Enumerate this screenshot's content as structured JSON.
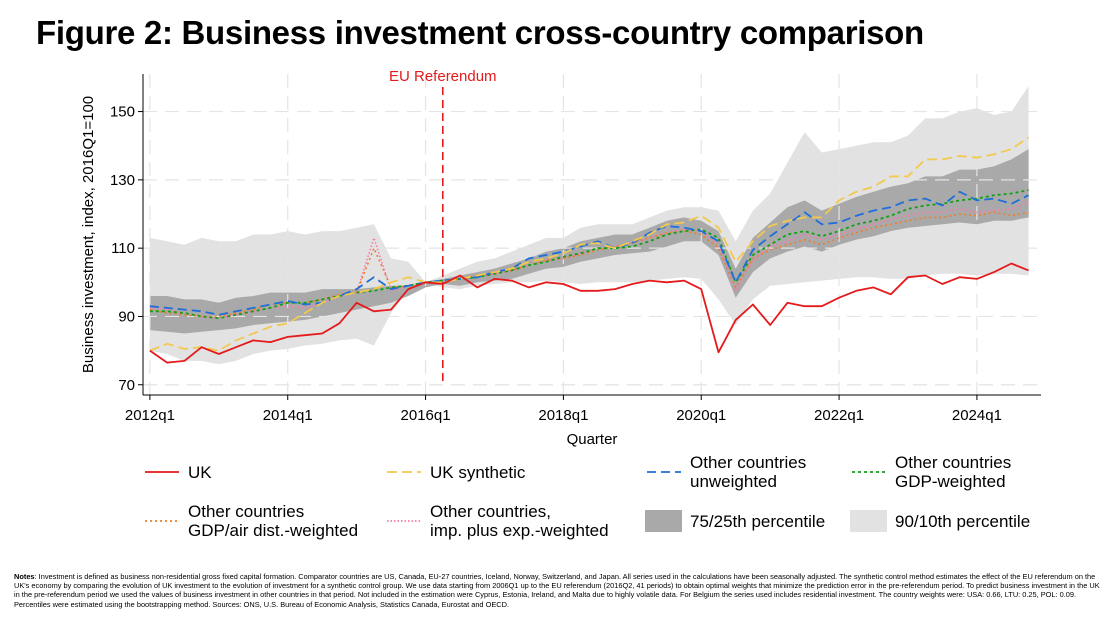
{
  "title": "Figure 2: Business investment cross-country comparison",
  "chart_data": {
    "type": "line",
    "xlabel": "Quarter",
    "ylabel": "Business investment, index, 2016Q1=100",
    "ylim": [
      67,
      161
    ],
    "yticks": [
      70,
      90,
      110,
      130,
      150
    ],
    "xticks": [
      {
        "x": 2012.0,
        "label": "2012q1"
      },
      {
        "x": 2014.0,
        "label": "2014q1"
      },
      {
        "x": 2016.0,
        "label": "2016q1"
      },
      {
        "x": 2018.0,
        "label": "2018q1"
      },
      {
        "x": 2020.0,
        "label": "2020q1"
      },
      {
        "x": 2022.0,
        "label": "2022q1"
      },
      {
        "x": 2024.0,
        "label": "2024q1"
      }
    ],
    "grid": true,
    "annotation": {
      "x": 2016.25,
      "label": "EU Referendum",
      "color": "#e41a1c"
    },
    "x": [
      2012.0,
      2012.25,
      2012.5,
      2012.75,
      2013.0,
      2013.25,
      2013.5,
      2013.75,
      2014.0,
      2014.25,
      2014.5,
      2014.75,
      2015.0,
      2015.25,
      2015.5,
      2015.75,
      2016.0,
      2016.25,
      2016.5,
      2016.75,
      2017.0,
      2017.25,
      2017.5,
      2017.75,
      2018.0,
      2018.25,
      2018.5,
      2018.75,
      2019.0,
      2019.25,
      2019.5,
      2019.75,
      2020.0,
      2020.25,
      2020.5,
      2020.75,
      2021.0,
      2021.25,
      2021.5,
      2021.75,
      2022.0,
      2022.25,
      2022.5,
      2022.75,
      2023.0,
      2023.25,
      2023.5,
      2023.75,
      2024.0,
      2024.25,
      2024.5,
      2024.75
    ],
    "series": [
      {
        "name": "UK",
        "color": "#e41a1c",
        "dash": "",
        "width": 1.8,
        "values": [
          80,
          76.5,
          77,
          81,
          79,
          81,
          83,
          82.5,
          84,
          84.5,
          85,
          88,
          94,
          91.5,
          92,
          98,
          100,
          99.5,
          102,
          98.5,
          101,
          100.5,
          98.5,
          100,
          99.5,
          97.5,
          97.5,
          98,
          99.5,
          100.5,
          100,
          100.5,
          98,
          79.5,
          89,
          93.5,
          87.5,
          94,
          93,
          93,
          95.5,
          97.5,
          98.5,
          96.5,
          101.5,
          102,
          99.5,
          101.5,
          101,
          103,
          105.5,
          103.5
        ]
      },
      {
        "name": "UK synthetic",
        "color": "#f2c94c",
        "dash": "10,5",
        "width": 1.8,
        "values": [
          80,
          82,
          80.5,
          81,
          80,
          83,
          85,
          87,
          88,
          91,
          94,
          96,
          97,
          98,
          100,
          101.5,
          100,
          100,
          101,
          102,
          103,
          104,
          106,
          107,
          108.5,
          111,
          111.5,
          110,
          112,
          114,
          117,
          117.5,
          119.5,
          116,
          106,
          112,
          116.5,
          118,
          119,
          119,
          124,
          126.5,
          128,
          131,
          131,
          136,
          136,
          137,
          136.5,
          137.5,
          139,
          142.5
        ]
      },
      {
        "name": "Other countries unweighted",
        "color": "#1e6fd9",
        "dash": "9,5",
        "width": 1.8,
        "values": [
          93,
          92.5,
          92,
          91.5,
          90.5,
          91.5,
          92.5,
          93.5,
          94.5,
          93.5,
          94,
          96,
          98,
          101.5,
          98,
          99,
          100,
          100.5,
          101,
          101.5,
          103,
          104,
          107,
          108,
          109,
          110.5,
          112,
          110,
          111.5,
          114.5,
          116.5,
          116,
          115,
          112,
          100,
          109.5,
          113.5,
          117,
          120.5,
          117,
          117.5,
          119.5,
          121,
          122,
          124,
          124.5,
          122.5,
          126.5,
          124,
          124.5,
          123,
          125.5
        ]
      },
      {
        "name": "Other countries GDP-weighted",
        "color": "#12a012",
        "dash": "3,3",
        "width": 1.8,
        "values": [
          91.5,
          91.5,
          91,
          90,
          89.5,
          90.5,
          91.5,
          92.5,
          94,
          94,
          95,
          96,
          97,
          97.5,
          98.5,
          99,
          100,
          100.5,
          101,
          101.5,
          102.5,
          103.5,
          105,
          106,
          107.5,
          108.5,
          110,
          110,
          110.5,
          112,
          114,
          115,
          115.5,
          113,
          100,
          108,
          111,
          114,
          115,
          113.5,
          115,
          117,
          118,
          119.5,
          121.5,
          122.5,
          123,
          124,
          124.5,
          125.5,
          126,
          127
        ]
      },
      {
        "name": "Other countries GDP/air dist.-weighted",
        "color": "#f07d2a",
        "dash": "2,3",
        "width": 1.6,
        "values": [
          92,
          91,
          90.5,
          90,
          90,
          91,
          92,
          93.5,
          94,
          94,
          95,
          96.5,
          97,
          110,
          98.5,
          99,
          100,
          100.5,
          101,
          102,
          102.5,
          103.5,
          105,
          106.5,
          107,
          108,
          109.5,
          110.5,
          111.5,
          113,
          114.5,
          115,
          114,
          110,
          98.5,
          107,
          109.5,
          111,
          112.5,
          111,
          113,
          114.5,
          116,
          117,
          118,
          119,
          119,
          120,
          119.5,
          120.5,
          119.5,
          120.5
        ]
      },
      {
        "name": "Other countries, imp. plus exp.-weighted",
        "color": "#f77ca8",
        "dash": "1.5,2",
        "width": 1.6,
        "values": [
          92.5,
          92,
          91,
          90,
          89.5,
          90.5,
          91.5,
          92.5,
          93,
          92.5,
          94,
          96,
          97,
          113,
          97.5,
          99,
          100,
          100.5,
          101,
          101.5,
          102.5,
          103.5,
          105,
          106.5,
          107,
          108.5,
          110,
          110.5,
          111.5,
          113,
          114.5,
          115.5,
          115,
          111,
          97.5,
          106.5,
          110.5,
          112,
          114,
          112.5,
          114,
          115.5,
          117,
          118.5,
          119.5,
          120.5,
          120.5,
          121.5,
          120.5,
          121,
          121.5,
          123.5
        ]
      }
    ],
    "bands": [
      {
        "name": "75/25th percentile",
        "color": "#a9a9a9",
        "upper": [
          96,
          96,
          95,
          95,
          94,
          95.5,
          96,
          97,
          97,
          97,
          98,
          98,
          98,
          98.5,
          99,
          99,
          100,
          101,
          102,
          103,
          104,
          105.5,
          107,
          109,
          110,
          112,
          113,
          114,
          114,
          116,
          118,
          119,
          118,
          115,
          104,
          113,
          117.5,
          122,
          124,
          121,
          123,
          125,
          126.5,
          128,
          129,
          131,
          131,
          133,
          133,
          134,
          136,
          139
        ],
        "lower": [
          86,
          85.5,
          85,
          85.5,
          86,
          86.5,
          87.5,
          88,
          88.5,
          89,
          90,
          91,
          92,
          93,
          94,
          96,
          98.5,
          99.5,
          99,
          100,
          100.5,
          101,
          102.5,
          104,
          104.5,
          106,
          107,
          108,
          108.5,
          109,
          110.5,
          112,
          112,
          108,
          95.5,
          103,
          107,
          109,
          110.5,
          109,
          111,
          112.5,
          113.5,
          115,
          116,
          116.5,
          117,
          117.5,
          117,
          118,
          118,
          119
        ]
      },
      {
        "name": "90/10th percentile",
        "color": "#e2e2e2",
        "upper": [
          113,
          112,
          111,
          113,
          112,
          112,
          114,
          114,
          115,
          114,
          115,
          115,
          116,
          117,
          107,
          106,
          100,
          102,
          104,
          106,
          107,
          109,
          111,
          113,
          113,
          116,
          117,
          117,
          117,
          119,
          121,
          122,
          122,
          121,
          112,
          121,
          126,
          135,
          144,
          138,
          139,
          140,
          141,
          141,
          143,
          148,
          148,
          150,
          151,
          149,
          150,
          157.5
        ],
        "lower": [
          80,
          79,
          77,
          77,
          76,
          77,
          79,
          80,
          80.5,
          81.5,
          82,
          83,
          83.5,
          81.5,
          91,
          97.5,
          100,
          98.5,
          98,
          99,
          99.5,
          100,
          100,
          100.5,
          100,
          99.5,
          100,
          100,
          100,
          100.5,
          101,
          101.5,
          101,
          95,
          87.5,
          95,
          99,
          99.5,
          100,
          100.5,
          101,
          101.5,
          101.5,
          101,
          101,
          102,
          102.5,
          102.5,
          102,
          102.5,
          102.5,
          102
        ]
      }
    ]
  },
  "legend": [
    {
      "key": "uk",
      "label": [
        "UK"
      ],
      "type": "line",
      "color": "#e41a1c",
      "dash": ""
    },
    {
      "key": "uk-synthetic",
      "label": [
        "UK synthetic"
      ],
      "type": "line",
      "color": "#f2c94c",
      "dash": "10,5"
    },
    {
      "key": "unweighted",
      "label": [
        "Other countries",
        "unweighted"
      ],
      "type": "line",
      "color": "#1e6fd9",
      "dash": "9,5"
    },
    {
      "key": "gdp-weighted",
      "label": [
        "Other countries",
        "GDP-weighted"
      ],
      "type": "line",
      "color": "#12a012",
      "dash": "3,3"
    },
    {
      "key": "gdp-air",
      "label": [
        "Other countries",
        "GDP/air dist.-weighted"
      ],
      "type": "line",
      "color": "#f07d2a",
      "dash": "2,3"
    },
    {
      "key": "imp-exp",
      "label": [
        "Other countries,",
        "imp. plus exp.-weighted"
      ],
      "type": "line",
      "color": "#f77ca8",
      "dash": "1.5,2"
    },
    {
      "key": "p75-25",
      "label": [
        "75/25th percentile"
      ],
      "type": "band",
      "color": "#a9a9a9"
    },
    {
      "key": "p90-10",
      "label": [
        "90/10th percentile"
      ],
      "type": "band",
      "color": "#e2e2e2"
    }
  ],
  "notes": {
    "label": "Notes",
    "text": ": Investment is defined as business non-residential gross fixed capital formation. Comparator countries are US, Canada, EU-27 countries, Iceland, Norway, Switzerland, and Japan. All series used in the calculations have been seasonally adjusted. The synthetic control method estimates the effect of the EU referendum on the UK's economy by comparing the evolution of UK investment to the evolution of investment for a synthetic control group. We use data starting from 2006Q1 up to the EU referendum (2016Q2, 41 periods) to obtain optimal weights that minimize the prediction error in the pre-referendum period. To predict business investment in the UK in the pre-referendum period we used the values of business investment in other countries in that period. Not included in the estimation were Cyprus, Estonia, Ireland, and Malta due to highly volatile data. For Belgium the series used includes residential investment. The country weights were: USA: 0.66, LTU: 0.25, POL: 0.09. Percentiles were estimated using the bootstrapping method. Sources: ONS, U.S. Bureau of Economic Analysis, Statistics Canada, Eurostat and OECD."
  }
}
